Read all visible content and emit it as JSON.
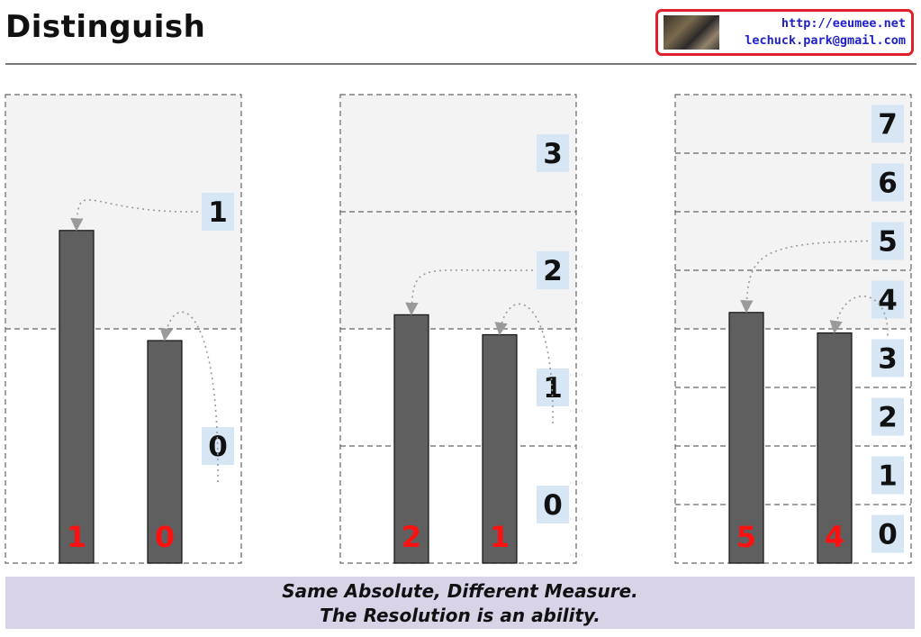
{
  "header": {
    "title": "Distinguish",
    "author": {
      "url": "http://eeumee.net",
      "email": "lechuck.park@gmail.com"
    }
  },
  "caption": {
    "line1": "Same Absolute, Different Measure.",
    "line2": "The Resolution is an ability."
  },
  "colors": {
    "bar": "#5f5f5f",
    "bar_label": "#ff1010",
    "label_bg": "#d6e6f5",
    "panel_bg": "#f3f3f3",
    "caption_bg": "#d9d3e8",
    "author_border": "#e0202a"
  },
  "panels": [
    {
      "levels": [
        "0",
        "1"
      ],
      "bars": [
        {
          "label": "1",
          "value": 1.42
        },
        {
          "label": "0",
          "value": 0.95
        }
      ]
    },
    {
      "levels": [
        "0",
        "1",
        "2",
        "3"
      ],
      "bars": [
        {
          "label": "2",
          "value": 2.12
        },
        {
          "label": "1",
          "value": 1.95
        }
      ]
    },
    {
      "levels": [
        "0",
        "1",
        "2",
        "3",
        "4",
        "5",
        "6",
        "7"
      ],
      "bars": [
        {
          "label": "5",
          "value": 4.28
        },
        {
          "label": "4",
          "value": 3.93
        }
      ]
    }
  ]
}
